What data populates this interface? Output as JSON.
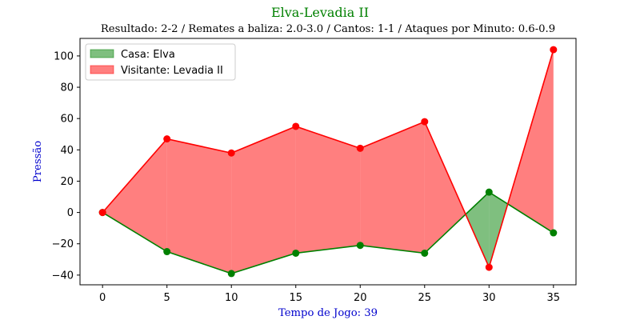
{
  "chart_data": {
    "type": "area",
    "title": "Elva-Levadia II",
    "subtitle": "Resultado: 2-2 / Remates a baliza: 2.0-3.0 / Cantos: 1-1 / Ataques por Minuto: 0.6-0.9",
    "xlabel": "Tempo de Jogo: 39",
    "ylabel": "Pressão",
    "x": [
      0,
      5,
      10,
      15,
      20,
      25,
      30,
      35
    ],
    "xticks": [
      0,
      5,
      10,
      15,
      20,
      25,
      30,
      35
    ],
    "yticks": [
      -40,
      -20,
      0,
      20,
      40,
      60,
      80,
      100
    ],
    "xlim": [
      -1.75,
      36.75
    ],
    "ylim": [
      -46.2,
      111.2
    ],
    "grid": false,
    "legend_position": "upper-left",
    "series": [
      {
        "name": "Casa: Elva",
        "color": "#008000",
        "fill_color": "#008000",
        "values": [
          0,
          -25,
          -39,
          -26,
          -21,
          -26,
          13,
          -13
        ]
      },
      {
        "name": "Visitante: Levadia II",
        "color": "#ff0000",
        "fill_color": "#ff0000",
        "values": [
          0,
          47,
          38,
          55,
          41,
          58,
          -35,
          104
        ]
      }
    ],
    "colors": {
      "title": "#008000",
      "subtitle": "#000000",
      "axis_labels": "#0000cd"
    }
  }
}
